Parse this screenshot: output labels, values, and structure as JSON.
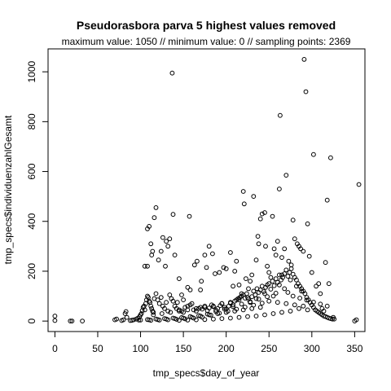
{
  "chart_data": {
    "type": "scatter",
    "title": "Pseudorasbora parva  5 highest values removed",
    "subtitle": "maximum value: 1050  //  minimum value: 0  // sampling points: 2369",
    "xlabel": "tmp_specs$day_of_year",
    "ylabel": "tmp_specs$individuenzahlGesamt",
    "xlim": [
      -8,
      362
    ],
    "ylim": [
      -42,
      1092
    ],
    "xticks": [
      0,
      50,
      100,
      150,
      200,
      250,
      300,
      350
    ],
    "yticks": [
      0,
      200,
      400,
      600,
      800,
      1000
    ],
    "grid": false,
    "points": [
      [
        0,
        20
      ],
      [
        0,
        2
      ],
      [
        18,
        0
      ],
      [
        20,
        0
      ],
      [
        32,
        0
      ],
      [
        70,
        5
      ],
      [
        72,
        8
      ],
      [
        78,
        2
      ],
      [
        80,
        5
      ],
      [
        82,
        30
      ],
      [
        83,
        38
      ],
      [
        84,
        15
      ],
      [
        88,
        2
      ],
      [
        90,
        3
      ],
      [
        92,
        5
      ],
      [
        95,
        8
      ],
      [
        97,
        12
      ],
      [
        99,
        18
      ],
      [
        100,
        25
      ],
      [
        101,
        30
      ],
      [
        102,
        42
      ],
      [
        103,
        55
      ],
      [
        104,
        60
      ],
      [
        105,
        45
      ],
      [
        106,
        70
      ],
      [
        107,
        85
      ],
      [
        108,
        100
      ],
      [
        109,
        95
      ],
      [
        110,
        80
      ],
      [
        111,
        75
      ],
      [
        112,
        60
      ],
      [
        113,
        50
      ],
      [
        114,
        40
      ],
      [
        115,
        35
      ],
      [
        116,
        90
      ],
      [
        118,
        110
      ],
      [
        120,
        85
      ],
      [
        122,
        70
      ],
      [
        124,
        95
      ],
      [
        126,
        60
      ],
      [
        128,
        50
      ],
      [
        130,
        75
      ],
      [
        132,
        40
      ],
      [
        134,
        105
      ],
      [
        136,
        90
      ],
      [
        138,
        80
      ],
      [
        140,
        60
      ],
      [
        142,
        50
      ],
      [
        145,
        45
      ],
      [
        148,
        40
      ],
      [
        150,
        35
      ],
      [
        152,
        55
      ],
      [
        155,
        60
      ],
      [
        158,
        65
      ],
      [
        160,
        70
      ],
      [
        162,
        45
      ],
      [
        165,
        40
      ],
      [
        168,
        50
      ],
      [
        170,
        55
      ],
      [
        172,
        48
      ],
      [
        175,
        60
      ],
      [
        178,
        42
      ],
      [
        180,
        52
      ],
      [
        183,
        65
      ],
      [
        185,
        58
      ],
      [
        188,
        44
      ],
      [
        190,
        50
      ],
      [
        193,
        62
      ],
      [
        195,
        70
      ],
      [
        198,
        55
      ],
      [
        200,
        48
      ],
      [
        203,
        60
      ],
      [
        205,
        72
      ],
      [
        208,
        65
      ],
      [
        210,
        80
      ],
      [
        212,
        85
      ],
      [
        214,
        90
      ],
      [
        216,
        95
      ],
      [
        218,
        100
      ],
      [
        220,
        105
      ],
      [
        222,
        92
      ],
      [
        224,
        110
      ],
      [
        226,
        88
      ],
      [
        228,
        75
      ],
      [
        230,
        98
      ],
      [
        232,
        120
      ],
      [
        234,
        105
      ],
      [
        236,
        130
      ],
      [
        238,
        115
      ],
      [
        240,
        125
      ],
      [
        242,
        140
      ],
      [
        244,
        118
      ],
      [
        246,
        135
      ],
      [
        248,
        145
      ],
      [
        250,
        150
      ],
      [
        252,
        128
      ],
      [
        254,
        160
      ],
      [
        256,
        142
      ],
      [
        258,
        170
      ],
      [
        260,
        155
      ],
      [
        262,
        185
      ],
      [
        264,
        165
      ],
      [
        266,
        175
      ],
      [
        268,
        190
      ],
      [
        270,
        205
      ],
      [
        272,
        180
      ],
      [
        274,
        195
      ],
      [
        276,
        210
      ],
      [
        278,
        188
      ],
      [
        280,
        175
      ],
      [
        282,
        165
      ],
      [
        284,
        150
      ],
      [
        286,
        140
      ],
      [
        288,
        130
      ],
      [
        290,
        120
      ],
      [
        292,
        110
      ],
      [
        294,
        95
      ],
      [
        296,
        85
      ],
      [
        298,
        75
      ],
      [
        300,
        65
      ],
      [
        302,
        55
      ],
      [
        304,
        45
      ],
      [
        306,
        40
      ],
      [
        308,
        35
      ],
      [
        310,
        30
      ],
      [
        312,
        25
      ],
      [
        314,
        20
      ],
      [
        316,
        18
      ],
      [
        318,
        15
      ],
      [
        320,
        12
      ],
      [
        322,
        10
      ],
      [
        324,
        8
      ],
      [
        105,
        220
      ],
      [
        108,
        220
      ],
      [
        108,
        370
      ],
      [
        110,
        380
      ],
      [
        112,
        310
      ],
      [
        113,
        265
      ],
      [
        114,
        280
      ],
      [
        116,
        415
      ],
      [
        118,
        455
      ],
      [
        121,
        245
      ],
      [
        124,
        280
      ],
      [
        126,
        335
      ],
      [
        129,
        220
      ],
      [
        130,
        320
      ],
      [
        132,
        300
      ],
      [
        134,
        330
      ],
      [
        137,
        995
      ],
      [
        138,
        428
      ],
      [
        140,
        265
      ],
      [
        143,
        75
      ],
      [
        145,
        170
      ],
      [
        148,
        105
      ],
      [
        150,
        85
      ],
      [
        155,
        135
      ],
      [
        157,
        420
      ],
      [
        158,
        125
      ],
      [
        163,
        225
      ],
      [
        166,
        240
      ],
      [
        170,
        125
      ],
      [
        171,
        160
      ],
      [
        175,
        265
      ],
      [
        177,
        215
      ],
      [
        180,
        300
      ],
      [
        184,
        270
      ],
      [
        187,
        190
      ],
      [
        192,
        195
      ],
      [
        197,
        215
      ],
      [
        200,
        210
      ],
      [
        205,
        275
      ],
      [
        208,
        140
      ],
      [
        210,
        200
      ],
      [
        212,
        240
      ],
      [
        215,
        145
      ],
      [
        218,
        110
      ],
      [
        220,
        520
      ],
      [
        221,
        470
      ],
      [
        223,
        170
      ],
      [
        226,
        130
      ],
      [
        228,
        160
      ],
      [
        230,
        185
      ],
      [
        232,
        500
      ],
      [
        235,
        245
      ],
      [
        237,
        340
      ],
      [
        238,
        310
      ],
      [
        240,
        410
      ],
      [
        242,
        430
      ],
      [
        245,
        435
      ],
      [
        246,
        300
      ],
      [
        248,
        220
      ],
      [
        250,
        195
      ],
      [
        252,
        175
      ],
      [
        254,
        420
      ],
      [
        256,
        290
      ],
      [
        258,
        265
      ],
      [
        260,
        320
      ],
      [
        262,
        530
      ],
      [
        263,
        825
      ],
      [
        265,
        255
      ],
      [
        268,
        290
      ],
      [
        270,
        585
      ],
      [
        273,
        240
      ],
      [
        276,
        225
      ],
      [
        278,
        405
      ],
      [
        280,
        330
      ],
      [
        283,
        310
      ],
      [
        285,
        300
      ],
      [
        287,
        290
      ],
      [
        290,
        280
      ],
      [
        291,
        1050
      ],
      [
        293,
        920
      ],
      [
        295,
        390
      ],
      [
        297,
        260
      ],
      [
        300,
        195
      ],
      [
        302,
        668
      ],
      [
        305,
        140
      ],
      [
        308,
        150
      ],
      [
        310,
        110
      ],
      [
        312,
        50
      ],
      [
        314,
        40
      ],
      [
        316,
        235
      ],
      [
        318,
        485
      ],
      [
        320,
        150
      ],
      [
        322,
        655
      ],
      [
        325,
        15
      ],
      [
        326,
        8
      ],
      [
        350,
        0
      ],
      [
        352,
        5
      ],
      [
        355,
        548
      ],
      [
        265,
        185
      ],
      [
        275,
        165
      ],
      [
        282,
        140
      ],
      [
        288,
        120
      ],
      [
        245,
        110
      ],
      [
        255,
        100
      ],
      [
        235,
        90
      ],
      [
        225,
        95
      ],
      [
        215,
        85
      ],
      [
        205,
        75
      ],
      [
        195,
        70
      ],
      [
        185,
        60
      ],
      [
        175,
        55
      ],
      [
        165,
        50
      ],
      [
        155,
        45
      ],
      [
        145,
        40
      ],
      [
        135,
        35
      ],
      [
        125,
        30
      ],
      [
        115,
        25
      ],
      [
        250,
        80
      ],
      [
        260,
        75
      ],
      [
        270,
        70
      ],
      [
        280,
        65
      ],
      [
        290,
        60
      ],
      [
        240,
        55
      ],
      [
        230,
        50
      ],
      [
        220,
        45
      ],
      [
        210,
        40
      ],
      [
        200,
        35
      ],
      [
        190,
        30
      ],
      [
        180,
        25
      ],
      [
        170,
        20
      ],
      [
        160,
        15
      ],
      [
        150,
        12
      ],
      [
        140,
        10
      ],
      [
        130,
        8
      ],
      [
        120,
        6
      ],
      [
        110,
        5
      ],
      [
        100,
        4
      ],
      [
        285,
        50
      ],
      [
        295,
        45
      ],
      [
        275,
        40
      ],
      [
        265,
        35
      ],
      [
        255,
        30
      ],
      [
        245,
        25
      ],
      [
        235,
        20
      ],
      [
        225,
        18
      ],
      [
        215,
        15
      ],
      [
        205,
        12
      ],
      [
        195,
        10
      ],
      [
        185,
        8
      ],
      [
        175,
        6
      ],
      [
        165,
        5
      ],
      [
        155,
        4
      ],
      [
        145,
        3
      ],
      [
        262,
        145
      ],
      [
        268,
        130
      ],
      [
        272,
        115
      ],
      [
        258,
        112
      ],
      [
        248,
        98
      ],
      [
        238,
        88
      ],
      [
        228,
        78
      ],
      [
        218,
        68
      ],
      [
        208,
        58
      ],
      [
        198,
        48
      ],
      [
        188,
        38
      ],
      [
        178,
        28
      ],
      [
        168,
        22
      ],
      [
        158,
        18
      ],
      [
        148,
        14
      ],
      [
        138,
        12
      ],
      [
        128,
        10
      ],
      [
        118,
        8
      ],
      [
        108,
        6
      ],
      [
        98,
        4
      ],
      [
        278,
        100
      ],
      [
        286,
        92
      ],
      [
        294,
        84
      ],
      [
        302,
        76
      ],
      [
        310,
        68
      ],
      [
        318,
        60
      ],
      [
        242,
        72
      ],
      [
        232,
        64
      ],
      [
        222,
        56
      ],
      [
        212,
        48
      ],
      [
        202,
        40
      ],
      [
        192,
        32
      ],
      [
        182,
        24
      ],
      [
        172,
        16
      ],
      [
        162,
        12
      ],
      [
        152,
        9
      ],
      [
        142,
        7
      ],
      [
        132,
        5
      ],
      [
        122,
        4
      ],
      [
        112,
        3
      ]
    ]
  }
}
